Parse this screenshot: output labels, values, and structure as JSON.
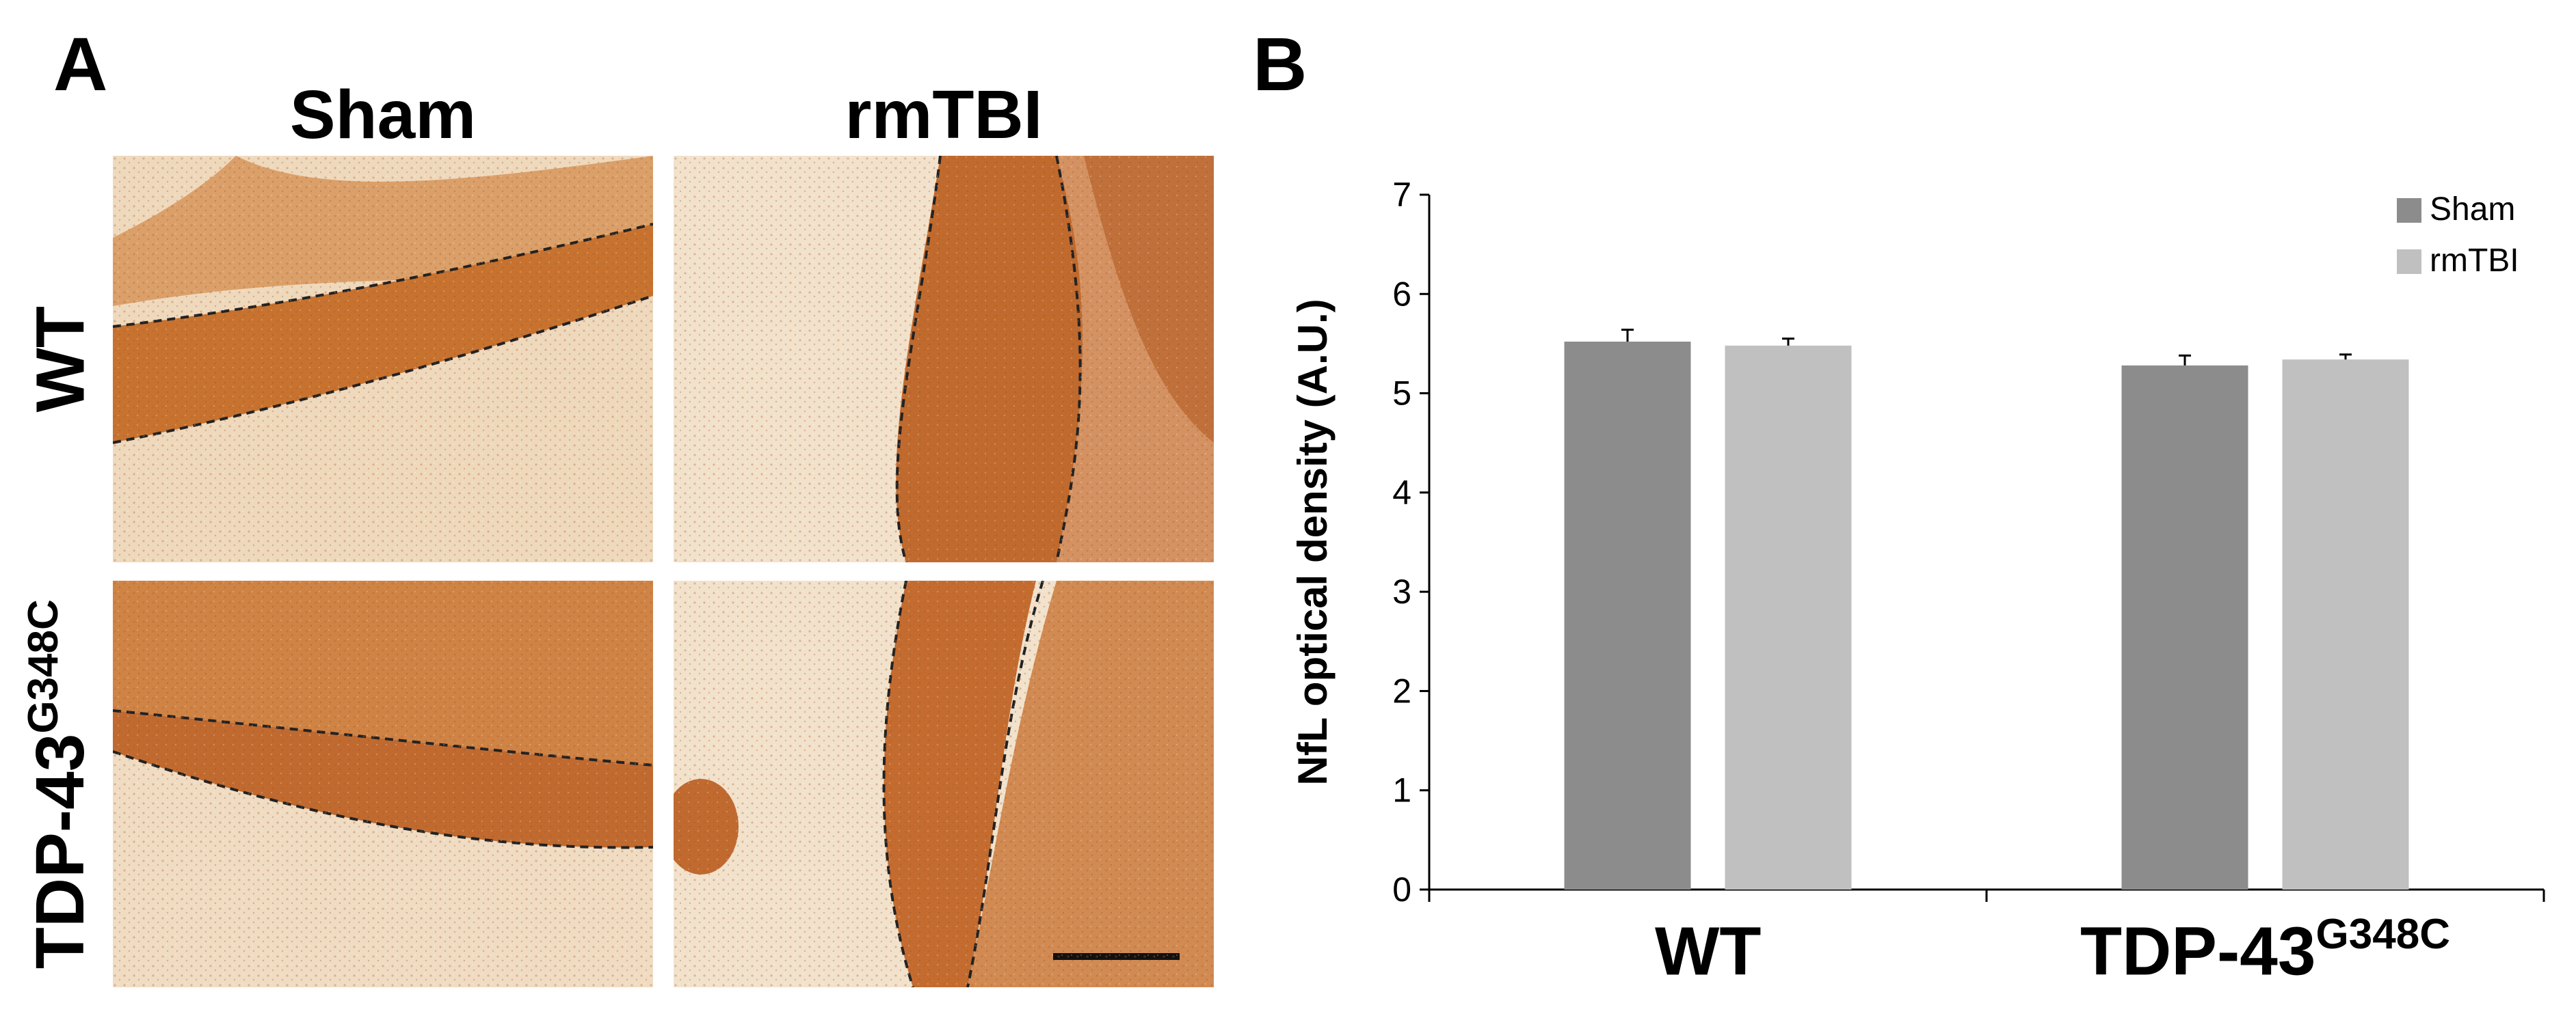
{
  "panel_a": {
    "letter": "A",
    "columns": [
      "Sham",
      "rmTBI"
    ],
    "rows": [
      {
        "text": "WT",
        "sup": ""
      },
      {
        "text": "TDP-43",
        "sup": "G348C"
      }
    ],
    "images": [
      {
        "name": "micrograph-wt-sham"
      },
      {
        "name": "micrograph-wt-rmtbi"
      },
      {
        "name": "micrograph-tdp43-sham"
      },
      {
        "name": "micrograph-tdp43-rmtbi"
      }
    ],
    "colors": {
      "tissue_light": "#f1dcc2",
      "tissue_dark": "#c2692e",
      "boundary": "#222222"
    }
  },
  "panel_b": {
    "letter": "B"
  },
  "chart_data": {
    "type": "bar",
    "categories": [
      {
        "text": "WT",
        "sup": ""
      },
      {
        "text": "TDP-43",
        "sup": "G348C"
      }
    ],
    "series": [
      {
        "name": "Sham",
        "values": [
          5.52,
          5.28
        ],
        "errors": [
          0.12,
          0.1
        ],
        "color": "#8c8c8c"
      },
      {
        "name": "rmTBI",
        "values": [
          5.48,
          5.34
        ],
        "errors": [
          0.07,
          0.05
        ],
        "color": "#c0c0c0"
      }
    ],
    "title": "",
    "xlabel": "",
    "ylabel": "NfL optical density (A.U.)",
    "ylim": [
      0,
      7
    ],
    "yticks": [
      0,
      1,
      2,
      3,
      4,
      5,
      6,
      7
    ],
    "grid": false,
    "legend_position": "top-right"
  }
}
